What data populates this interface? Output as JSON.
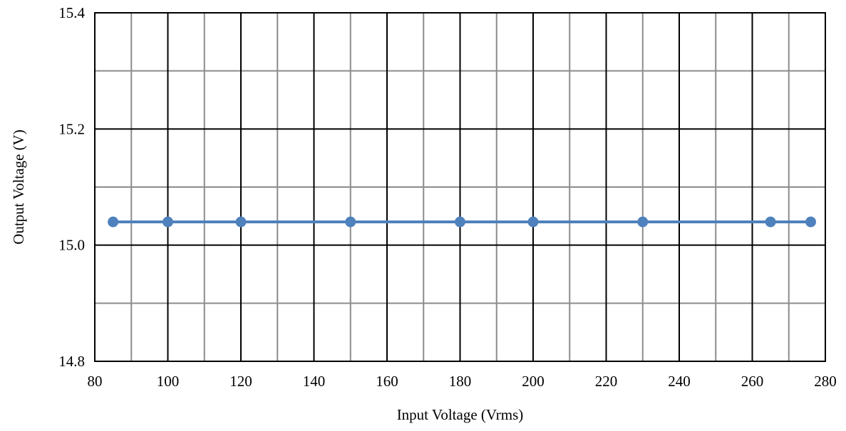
{
  "chart_data": {
    "type": "line",
    "title": "",
    "xlabel": "Input Voltage  (Vrms)",
    "ylabel": "Output Voltage (V)",
    "xlim": [
      80,
      280
    ],
    "ylim": [
      14.8,
      15.4
    ],
    "x_major_ticks": [
      80,
      100,
      120,
      140,
      160,
      180,
      200,
      220,
      240,
      260,
      280
    ],
    "x_tick_labels": [
      "80",
      "100",
      "120",
      "140",
      "160",
      "180",
      "200",
      "220",
      "240",
      "260",
      "280"
    ],
    "x_minor_step": 10,
    "y_major_ticks": [
      14.8,
      15.0,
      15.2,
      15.4
    ],
    "y_tick_labels": [
      "14.8",
      "15.0",
      "15.2",
      "15.4"
    ],
    "y_minor_step": 0.1,
    "grid": true,
    "legend": "none",
    "series": [
      {
        "color": "#4F81BD",
        "marker": "circle",
        "points": [
          {
            "x": 85,
            "y": 15.04
          },
          {
            "x": 100,
            "y": 15.04
          },
          {
            "x": 120,
            "y": 15.04
          },
          {
            "x": 150,
            "y": 15.04
          },
          {
            "x": 180,
            "y": 15.04
          },
          {
            "x": 200,
            "y": 15.04
          },
          {
            "x": 230,
            "y": 15.04
          },
          {
            "x": 265,
            "y": 15.04
          },
          {
            "x": 276,
            "y": 15.04
          }
        ]
      }
    ],
    "colors": {
      "major_grid": "#000000",
      "minor_grid": "#8C8C8C",
      "series": "#4F81BD"
    }
  }
}
